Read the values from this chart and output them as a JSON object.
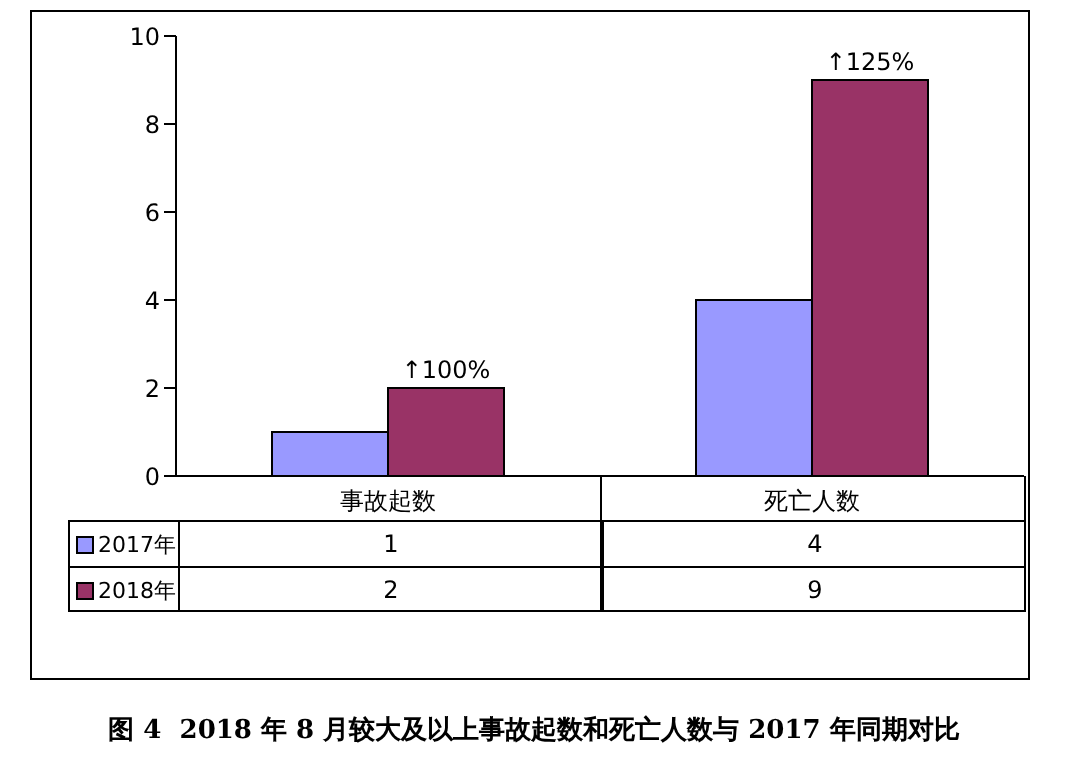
{
  "chart_data": {
    "type": "bar",
    "title": "图 4  2018 年 8 月较大及以上事故起数和死亡人数与 2017 年同期对比",
    "categories": [
      "事故起数",
      "死亡人数"
    ],
    "series": [
      {
        "name": "2017年",
        "color": "#9999ff",
        "values": [
          1,
          4
        ]
      },
      {
        "name": "2018年",
        "color": "#993366",
        "values": [
          2,
          9
        ]
      }
    ],
    "ylim": [
      0,
      10
    ],
    "yticks": [
      0,
      2,
      4,
      6,
      8,
      10
    ],
    "grid": false,
    "legend": "bottom",
    "data_labels": true,
    "annotations": [
      {
        "text": "↑100%",
        "x": "事故起数",
        "y": 2
      },
      {
        "text": "↑125%",
        "x": "死亡人数",
        "y": 9
      }
    ]
  }
}
